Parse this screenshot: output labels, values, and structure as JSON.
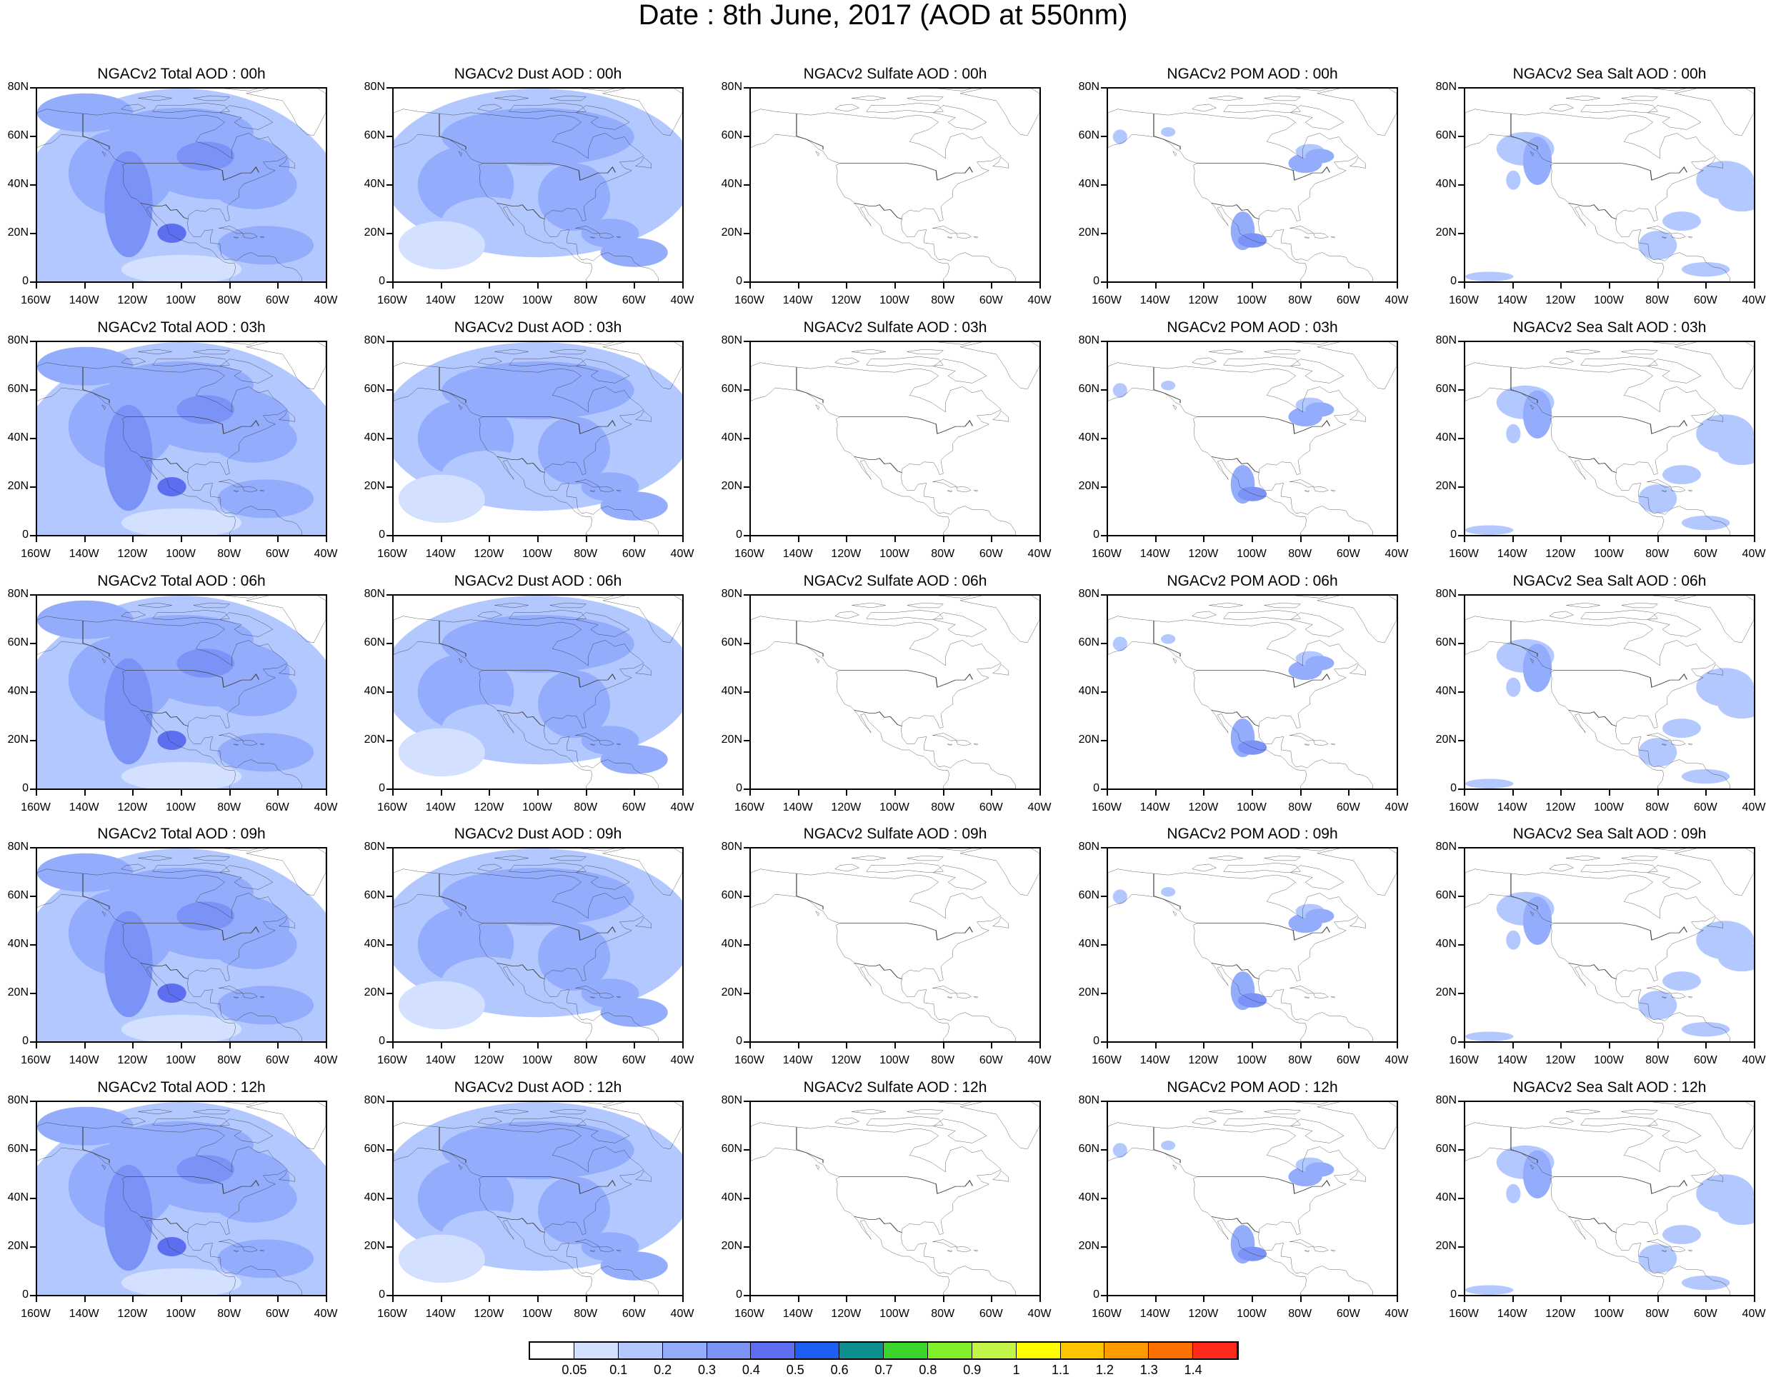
{
  "title": "Date : 8th June, 2017 (AOD at 550nm)",
  "map_axes": {
    "x_ticks": [
      "160W",
      "140W",
      "120W",
      "100W",
      "80W",
      "60W",
      "40W"
    ],
    "y_ticks": [
      "80N",
      "60N",
      "40N",
      "20N",
      "0"
    ],
    "lon_range": [
      -160,
      -40
    ],
    "lat_range": [
      0,
      80
    ]
  },
  "panels": [
    {
      "title": "NGACv2 Total AOD : 00h",
      "variable": "total",
      "hour": "00h"
    },
    {
      "title": "NGACv2 Dust AOD : 00h",
      "variable": "dust",
      "hour": "00h"
    },
    {
      "title": "NGACv2 Sulfate AOD : 00h",
      "variable": "sulfate",
      "hour": "00h"
    },
    {
      "title": "NGACv2 POM AOD : 00h",
      "variable": "pom",
      "hour": "00h"
    },
    {
      "title": "NGACv2 Sea Salt AOD : 00h",
      "variable": "seasalt",
      "hour": "00h"
    },
    {
      "title": "NGACv2 Total AOD : 03h",
      "variable": "total",
      "hour": "03h"
    },
    {
      "title": "NGACv2 Dust AOD : 03h",
      "variable": "dust",
      "hour": "03h"
    },
    {
      "title": "NGACv2 Sulfate AOD : 03h",
      "variable": "sulfate",
      "hour": "03h"
    },
    {
      "title": "NGACv2 POM AOD : 03h",
      "variable": "pom",
      "hour": "03h"
    },
    {
      "title": "NGACv2 Sea Salt AOD : 03h",
      "variable": "seasalt",
      "hour": "03h"
    },
    {
      "title": "NGACv2 Total AOD : 06h",
      "variable": "total",
      "hour": "06h"
    },
    {
      "title": "NGACv2 Dust AOD : 06h",
      "variable": "dust",
      "hour": "06h"
    },
    {
      "title": "NGACv2 Sulfate AOD : 06h",
      "variable": "sulfate",
      "hour": "06h"
    },
    {
      "title": "NGACv2 POM AOD : 06h",
      "variable": "pom",
      "hour": "06h"
    },
    {
      "title": "NGACv2 Sea Salt AOD : 06h",
      "variable": "seasalt",
      "hour": "06h"
    },
    {
      "title": "NGACv2 Total AOD : 09h",
      "variable": "total",
      "hour": "09h"
    },
    {
      "title": "NGACv2 Dust AOD : 09h",
      "variable": "dust",
      "hour": "09h"
    },
    {
      "title": "NGACv2 Sulfate AOD : 09h",
      "variable": "sulfate",
      "hour": "09h"
    },
    {
      "title": "NGACv2 POM AOD : 09h",
      "variable": "pom",
      "hour": "09h"
    },
    {
      "title": "NGACv2 Sea Salt  AOD : 09h",
      "variable": "seasalt",
      "hour": "09h"
    },
    {
      "title": "NGACv2 Total AOD  : 12h",
      "variable": "total",
      "hour": "12h"
    },
    {
      "title": "NGACv2 Dust AOD : 12h",
      "variable": "dust",
      "hour": "12h"
    },
    {
      "title": "NGACv2 Sulfate AOD : 12h",
      "variable": "sulfate",
      "hour": "12h"
    },
    {
      "title": "NGACv2 POM  AOD : 12h",
      "variable": "pom",
      "hour": "12h"
    },
    {
      "title": "NGACv2 Sea Salt  AOD : 12h",
      "variable": "seasalt",
      "hour": "12h"
    }
  ],
  "colorbar": {
    "labels": [
      "0.05",
      "0.1",
      "0.2",
      "0.3",
      "0.4",
      "0.5",
      "0.6",
      "0.7",
      "0.8",
      "0.9",
      "1",
      "1.1",
      "1.2",
      "1.3",
      "1.4"
    ],
    "colors": [
      "#ffffff",
      "#d3e0ff",
      "#b3c8ff",
      "#93acfc",
      "#7b93f7",
      "#5d6ff0",
      "#1d5ff5",
      "#0e9090",
      "#3ad52a",
      "#7ff02a",
      "#c2f548",
      "#ffff00",
      "#ffc400",
      "#ff9a00",
      "#ff7000",
      "#ff2a1a"
    ]
  }
}
